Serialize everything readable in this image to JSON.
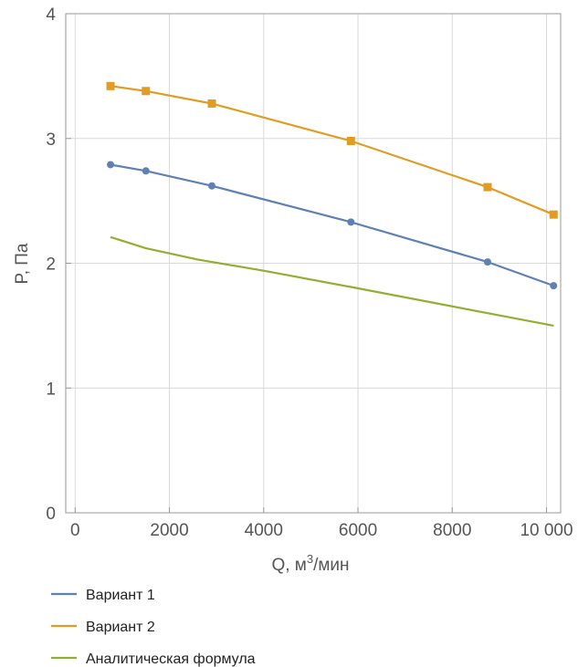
{
  "chart_data": {
    "type": "line",
    "xlabel": "Q, м",
    "xlabel_sup": "3",
    "xlabel_suffix": "/мин",
    "ylabel": "P, Па",
    "xlim": [
      -200,
      10300
    ],
    "ylim": [
      0,
      4
    ],
    "x_ticks": [
      0,
      2000,
      4000,
      6000,
      8000,
      10000
    ],
    "x_tick_labels": [
      "0",
      "2000",
      "4000",
      "6000",
      "8000",
      "10 000"
    ],
    "y_ticks": [
      0,
      1,
      2,
      3,
      4
    ],
    "y_tick_labels": [
      "0",
      "1",
      "2",
      "3",
      "4"
    ],
    "grid": true,
    "legend_position": "bottom-left",
    "series": [
      {
        "name": "Вариант 1",
        "color": "#5e81b5",
        "marker": "circle",
        "x": [
          750,
          1500,
          2900,
          5850,
          8750,
          10150
        ],
        "y": [
          2.79,
          2.74,
          2.62,
          2.33,
          2.01,
          1.82
        ]
      },
      {
        "name": "Вариант 2",
        "color": "#e19c24",
        "marker": "square",
        "x": [
          750,
          1500,
          2900,
          5850,
          8750,
          10150
        ],
        "y": [
          3.42,
          3.38,
          3.28,
          2.98,
          2.61,
          2.39
        ]
      },
      {
        "name": "Аналитическая формула",
        "color": "#8fb032",
        "marker": "none",
        "x": [
          750,
          1500,
          2600,
          4000,
          5850,
          8750,
          10150
        ],
        "y": [
          2.21,
          2.12,
          2.03,
          1.94,
          1.81,
          1.6,
          1.5
        ]
      }
    ]
  }
}
